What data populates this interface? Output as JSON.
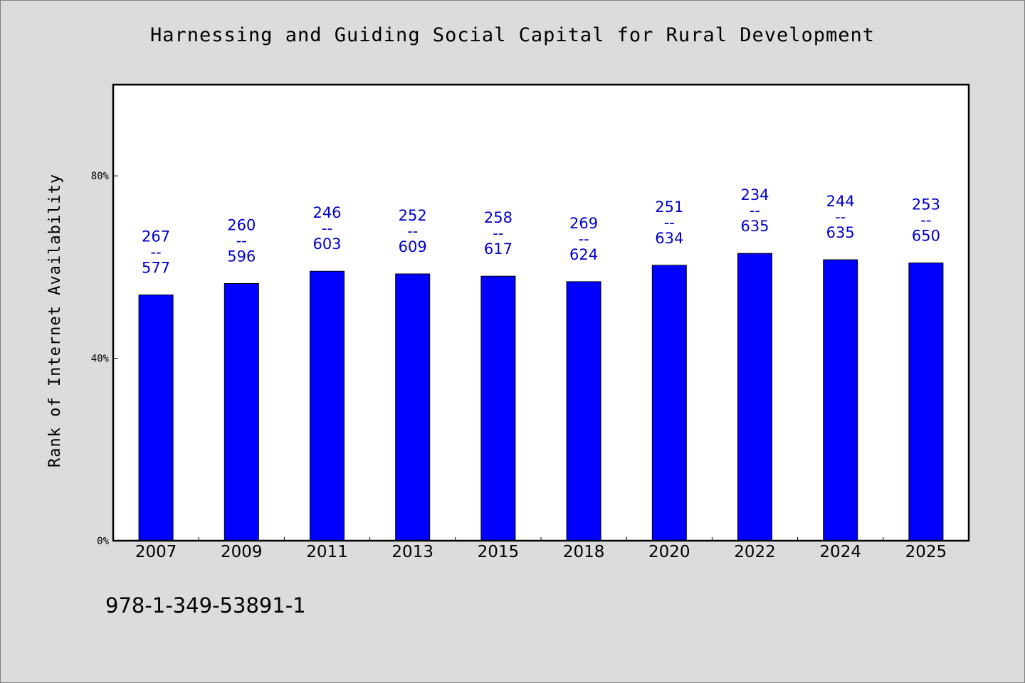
{
  "chart_data": {
    "type": "bar",
    "title": "Harnessing and Guiding Social Capital for Rural Development",
    "ylabel": "Rank of Internet Availability",
    "xlabel": "",
    "ylim": [
      0,
      100
    ],
    "yticks": [
      "0%",
      "40%",
      "80%"
    ],
    "ytick_values": [
      0,
      40,
      80
    ],
    "categories": [
      "2007",
      "2009",
      "2011",
      "2013",
      "2015",
      "2018",
      "2020",
      "2022",
      "2024",
      "2025"
    ],
    "values": [
      53.9,
      56.4,
      59.1,
      58.5,
      58.0,
      56.8,
      60.4,
      63.0,
      61.6,
      60.9
    ],
    "bar_labels": [
      {
        "top": "267",
        "sep": "--",
        "bottom": "577"
      },
      {
        "top": "260",
        "sep": "--",
        "bottom": "596"
      },
      {
        "top": "246",
        "sep": "--",
        "bottom": "603"
      },
      {
        "top": "252",
        "sep": "--",
        "bottom": "609"
      },
      {
        "top": "258",
        "sep": "--",
        "bottom": "617"
      },
      {
        "top": "269",
        "sep": "--",
        "bottom": "624"
      },
      {
        "top": "251",
        "sep": "--",
        "bottom": "634"
      },
      {
        "top": "234",
        "sep": "--",
        "bottom": "635"
      },
      {
        "top": "244",
        "sep": "--",
        "bottom": "635"
      },
      {
        "top": "253",
        "sep": "--",
        "bottom": "650"
      }
    ],
    "grid": false,
    "bar_color": "#0000ff",
    "label_color": "#0000cc"
  },
  "footer": {
    "isbn": "978-1-349-53891-1"
  }
}
